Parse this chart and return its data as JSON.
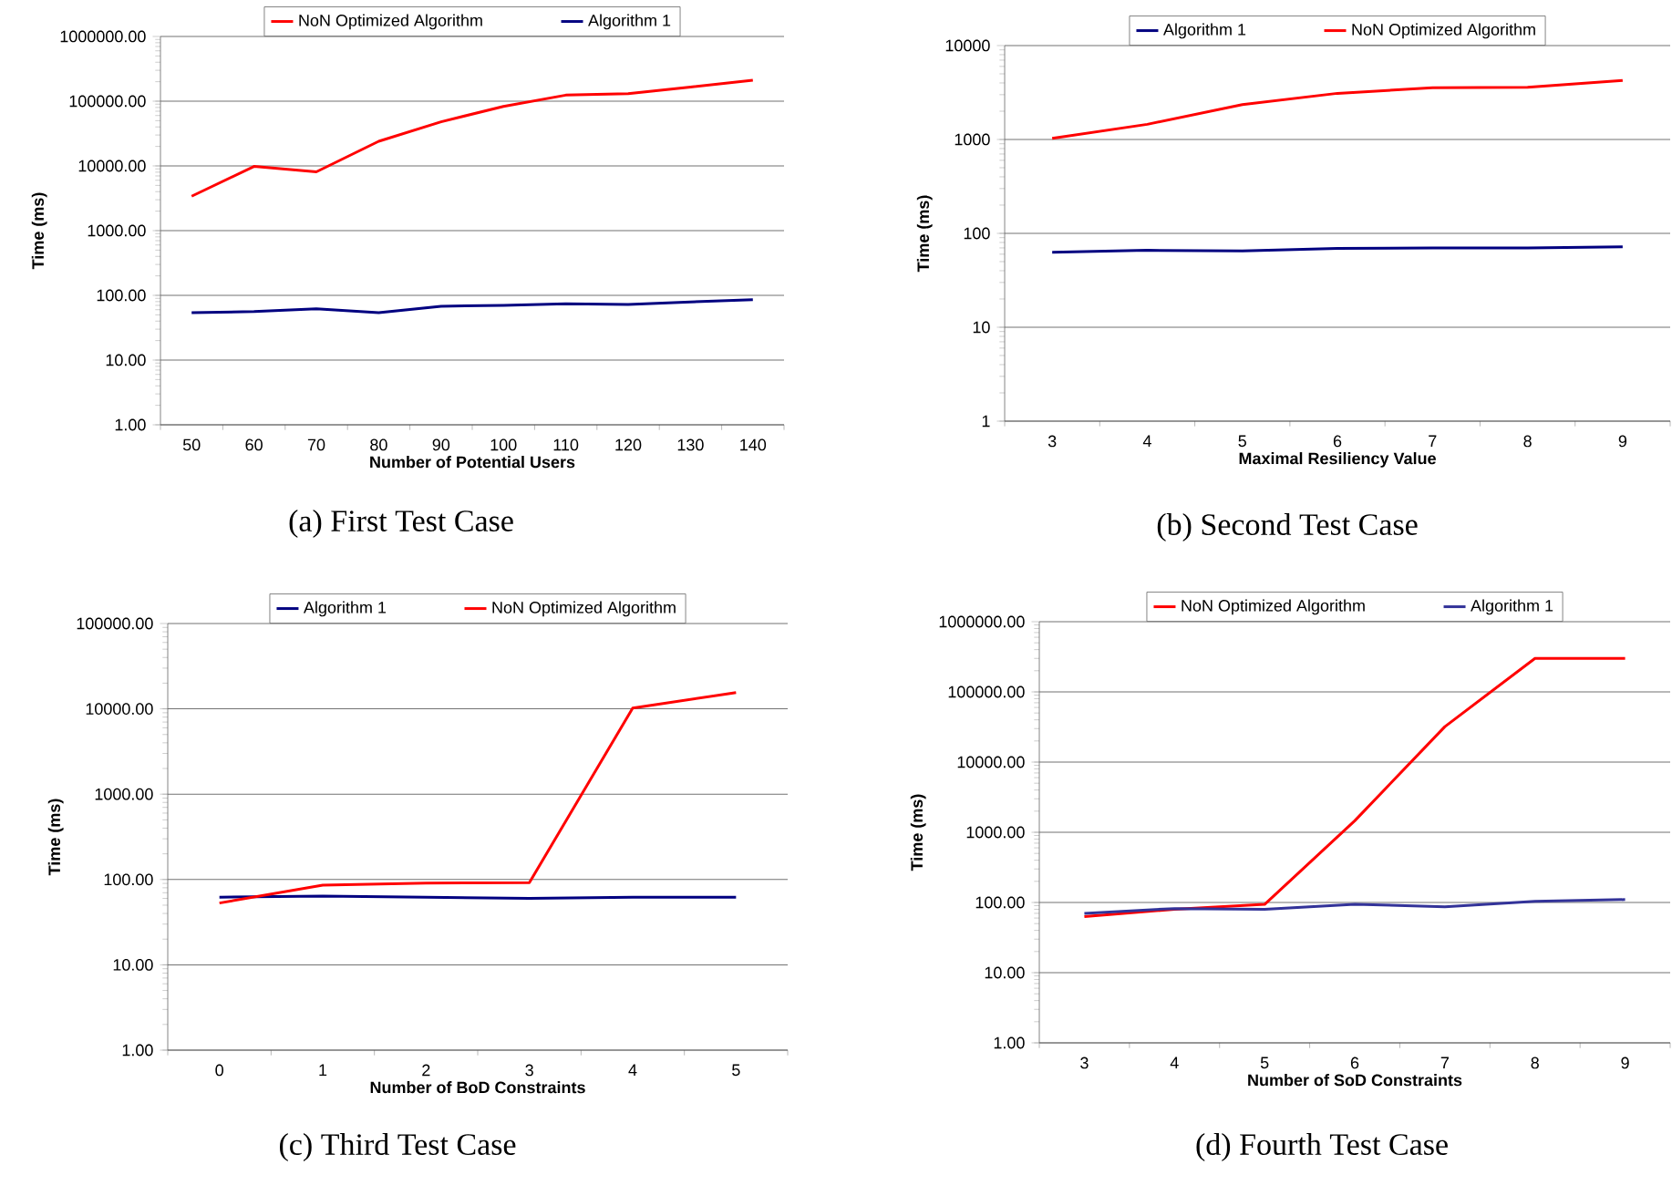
{
  "chart_data": [
    {
      "type": "line",
      "log": "y",
      "grid": "y",
      "legend": "top",
      "xlabel": "Number of Potential Users",
      "ylabel": "Time (ms)",
      "categories": [
        "50",
        "60",
        "70",
        "80",
        "90",
        "100",
        "110",
        "120",
        "130",
        "140"
      ],
      "ylim": [
        1,
        1000000
      ],
      "yticks": [
        {
          "value": 1,
          "label": "1.00"
        },
        {
          "value": 10,
          "label": "10.00"
        },
        {
          "value": 100,
          "label": "100.00"
        },
        {
          "value": 1000,
          "label": "1000.00"
        },
        {
          "value": 10000,
          "label": "10000.00"
        },
        {
          "value": 100000,
          "label": "100000.00"
        },
        {
          "value": 1000000,
          "label": "1000000.00"
        }
      ],
      "series": [
        {
          "name": "NoN Optimized Algorithm",
          "color": "#ff0000",
          "values": [
            3400,
            9800,
            8100,
            24000,
            48000,
            83000,
            124000,
            131000,
            165000,
            210000
          ]
        },
        {
          "name": "Algorithm 1",
          "color": "#000080",
          "values": [
            54,
            56,
            62,
            54,
            68,
            70,
            74,
            72,
            79,
            86
          ]
        }
      ],
      "annotations": [
        "(a) First Test Case"
      ]
    },
    {
      "type": "line",
      "log": "y",
      "grid": "y",
      "legend": "top",
      "xlabel": "Maximal Resiliency Value",
      "ylabel": "Time (ms)",
      "categories": [
        "3",
        "4",
        "5",
        "6",
        "7",
        "8",
        "9"
      ],
      "ylim": [
        1,
        10000
      ],
      "yticks": [
        1,
        10,
        100,
        1000,
        10000
      ],
      "series": [
        {
          "name": "Algorithm 1",
          "color": "#000080",
          "values": [
            63,
            66,
            65,
            69,
            70,
            70,
            72
          ]
        },
        {
          "name": "NoN Optimized Algorithm",
          "color": "#ff0000",
          "values": [
            1030,
            1450,
            2350,
            3100,
            3550,
            3600,
            4250
          ]
        }
      ],
      "annotations": [
        "(b) Second Test Case"
      ]
    },
    {
      "type": "line",
      "log": "y",
      "grid": "y",
      "legend": "top",
      "xlabel": "Number of BoD Constraints",
      "ylabel": "Time (ms)",
      "categories": [
        "0",
        "1",
        "2",
        "3",
        "4",
        "5"
      ],
      "ylim": [
        1,
        100000
      ],
      "yticks": [
        {
          "value": 1,
          "label": "1.00"
        },
        {
          "value": 10,
          "label": "10.00"
        },
        {
          "value": 100,
          "label": "100.00"
        },
        {
          "value": 1000,
          "label": "1000.00"
        },
        {
          "value": 10000,
          "label": "10000.00"
        },
        {
          "value": 100000,
          "label": "100000.00"
        }
      ],
      "series": [
        {
          "name": "Algorithm 1",
          "color": "#000080",
          "values": [
            62,
            64,
            62,
            60,
            62,
            62
          ]
        },
        {
          "name": "NoN Optimized Algorithm",
          "color": "#ff0000",
          "values": [
            53,
            86,
            91,
            92,
            10200,
            15500
          ]
        }
      ],
      "annotations": [
        "(c) Third Test Case"
      ]
    },
    {
      "type": "line",
      "log": "y",
      "grid": "y",
      "legend": "top",
      "xlabel": "Number of SoD Constraints",
      "ylabel": "Time (ms)",
      "categories": [
        "3",
        "4",
        "5",
        "6",
        "7",
        "8",
        "9"
      ],
      "ylim": [
        1,
        1000000
      ],
      "yticks": [
        {
          "value": 1,
          "label": "1.00"
        },
        {
          "value": 10,
          "label": "10.00"
        },
        {
          "value": 100,
          "label": "100.00"
        },
        {
          "value": 1000,
          "label": "1000.00"
        },
        {
          "value": 10000,
          "label": "10000.00"
        },
        {
          "value": 100000,
          "label": "100000.00"
        },
        {
          "value": 1000000,
          "label": "1000000.00"
        }
      ],
      "series": [
        {
          "name": "NoN Optimized Algorithm",
          "color": "#ff0000",
          "values": [
            63,
            80,
            94,
            1460,
            32000,
            300000,
            300000
          ]
        },
        {
          "name": "Algorithm 1",
          "color": "#333399",
          "values": [
            70,
            82,
            80,
            94,
            87,
            104,
            110
          ]
        }
      ],
      "annotations": [
        "(d) Fourth Test Case"
      ]
    }
  ]
}
